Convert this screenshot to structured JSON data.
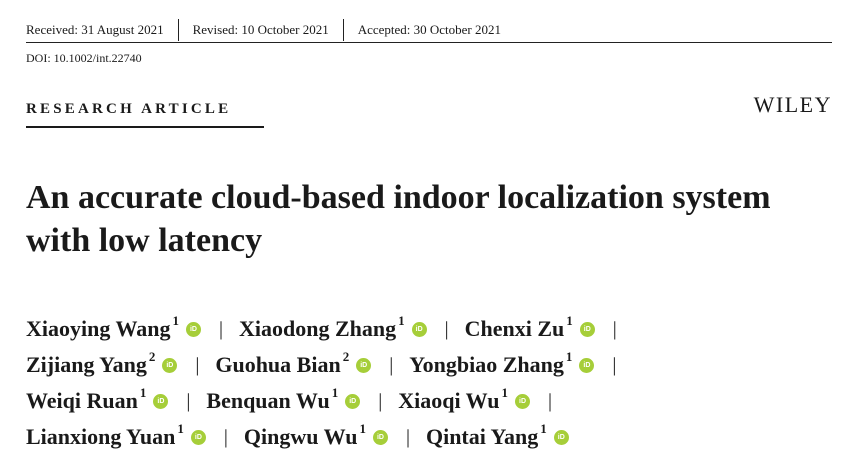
{
  "dates": {
    "received": "Received: 31 August 2021",
    "revised": "Revised: 10 October 2021",
    "accepted": "Accepted: 30 October 2021"
  },
  "doi": "DOI: 10.1002/int.22740",
  "article_type": "RESEARCH ARTICLE",
  "publisher": "WILEY",
  "title": "An accurate cloud-based indoor localization system with low latency",
  "orcid_glyph": "iD",
  "separator": "|",
  "author_lines": [
    [
      {
        "name": "Xiaoying Wang",
        "aff": "1"
      },
      {
        "name": "Xiaodong Zhang",
        "aff": "1"
      },
      {
        "name": "Chenxi Zu",
        "aff": "1"
      }
    ],
    [
      {
        "name": "Zijiang Yang",
        "aff": "2"
      },
      {
        "name": "Guohua Bian",
        "aff": "2"
      },
      {
        "name": "Yongbiao Zhang",
        "aff": "1"
      }
    ],
    [
      {
        "name": "Weiqi Ruan",
        "aff": "1"
      },
      {
        "name": "Benquan Wu",
        "aff": "1"
      },
      {
        "name": "Xiaoqi Wu",
        "aff": "1"
      }
    ],
    [
      {
        "name": "Lianxiong Yuan",
        "aff": "1"
      },
      {
        "name": "Qingwu Wu",
        "aff": "1"
      },
      {
        "name": "Qintai Yang",
        "aff": "1"
      }
    ]
  ],
  "colors": {
    "orcid_green": "#a6ce39",
    "text": "#1a1a1a"
  }
}
